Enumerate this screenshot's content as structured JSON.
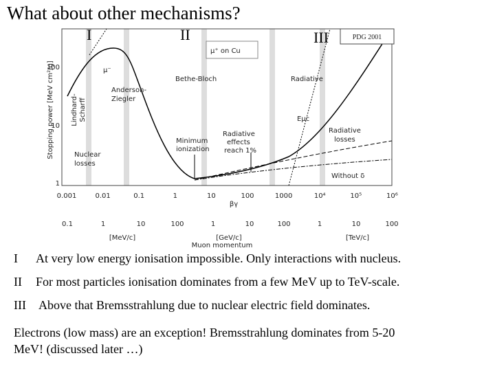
{
  "title": "What about other mechanisms?",
  "regions": [
    "I",
    "II",
    "III"
  ],
  "badge": "PDG 2001",
  "figure": {
    "legend": "μ⁺ on Cu",
    "y_label": "Stopping power [MeV cm²/g]",
    "y_ticks": [
      "100",
      "10",
      "1"
    ],
    "x_label": "βγ",
    "x_ticks": [
      "0.001",
      "0.01",
      "0.1",
      "1",
      "10",
      "100",
      "1000",
      "10⁴",
      "10⁵",
      "10⁶"
    ],
    "momentum_ticks": [
      "0.1",
      "1",
      "10",
      "100",
      "1",
      "10",
      "100",
      "1",
      "10",
      "100"
    ],
    "momentum_units": [
      "[MeV/c]",
      "[GeV/c]",
      "[TeV/c]"
    ],
    "momentum_label": "Muon momentum",
    "annotations": [
      "μ⁻",
      "Anderson-",
      "Ziegler",
      "Lindhard-",
      "Scharff",
      "Nuclear",
      "losses",
      "Bethe-Bloch",
      "Minimum",
      "ionization",
      "Radiative",
      "effects",
      "reach 1%",
      "Radiative",
      "Eμc",
      "Radiative",
      "losses",
      "Without δ"
    ]
  },
  "bullets": [
    {
      "marker": "I",
      "text": "At very low energy ionisation impossible. Only interactions with nucleus."
    },
    {
      "marker": "II",
      "text": "For most particles ionisation dominates from a few MeV up to TeV-scale."
    },
    {
      "marker": "III",
      "text": "Above that Bremsstrahlung due to nuclear electric field dominates."
    }
  ],
  "note": [
    "Electrons (low mass) are an exception! Bremsstrahlung dominates from 5-20",
    "MeV! (discussed later …)"
  ]
}
